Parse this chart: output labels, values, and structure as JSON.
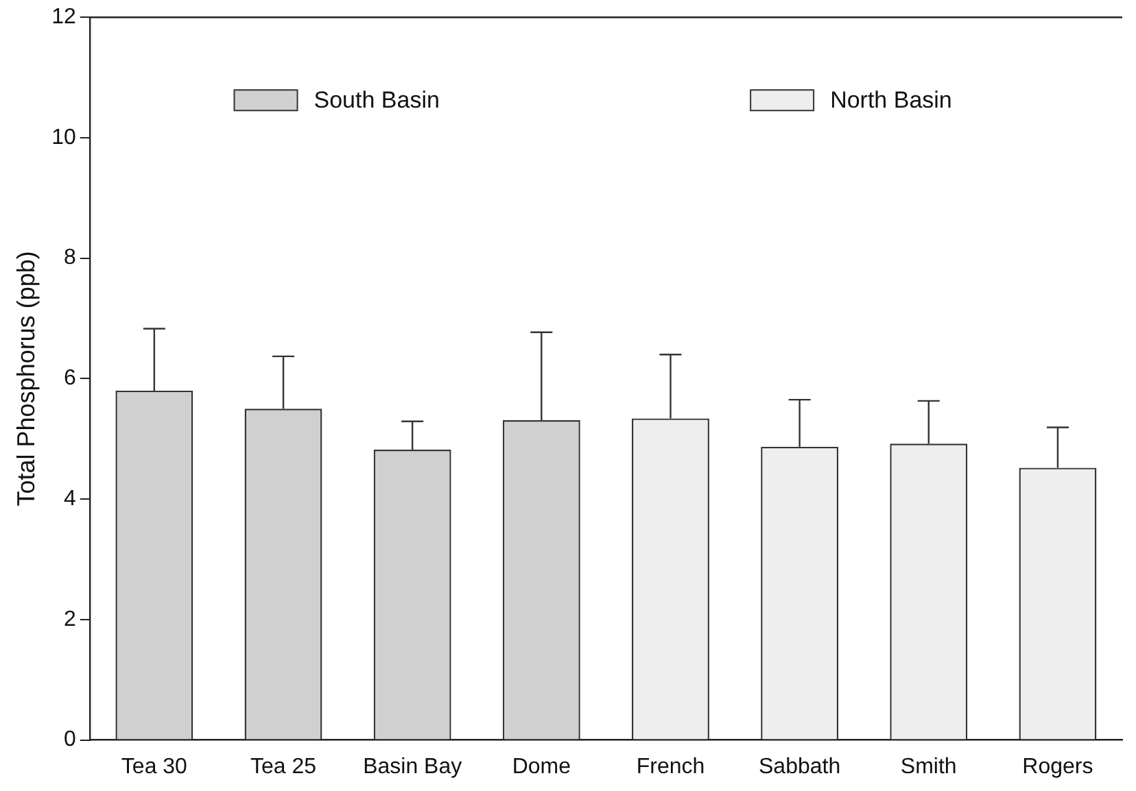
{
  "chart_data": {
    "type": "bar",
    "ylabel": "Total Phosphorus (ppb)",
    "categories": [
      "Tea 30",
      "Tea 25",
      "Basin Bay",
      "Dome",
      "French",
      "Sabbath",
      "Smith",
      "Rogers"
    ],
    "series": [
      {
        "name": "South Basin",
        "color": "#d0d0d0",
        "values": [
          5.8,
          5.5,
          4.82,
          5.31,
          null,
          null,
          null,
          null
        ],
        "errors": [
          [
            5.8,
            6.83
          ],
          [
            5.5,
            6.37
          ],
          [
            4.82,
            5.29
          ],
          [
            5.31,
            6.77
          ],
          null,
          null,
          null,
          null
        ]
      },
      {
        "name": "North Basin",
        "color": "#eeeeee",
        "values": [
          null,
          null,
          null,
          null,
          5.34,
          4.87,
          4.92,
          4.52
        ],
        "errors": [
          null,
          null,
          null,
          null,
          [
            5.34,
            6.4
          ],
          [
            4.87,
            5.65
          ],
          [
            4.92,
            5.63
          ],
          [
            4.52,
            5.19
          ]
        ]
      }
    ],
    "ylim": [
      0,
      12
    ],
    "yticks": [
      0,
      2,
      4,
      6,
      8,
      10,
      12
    ],
    "grid": false,
    "legend": "top"
  }
}
